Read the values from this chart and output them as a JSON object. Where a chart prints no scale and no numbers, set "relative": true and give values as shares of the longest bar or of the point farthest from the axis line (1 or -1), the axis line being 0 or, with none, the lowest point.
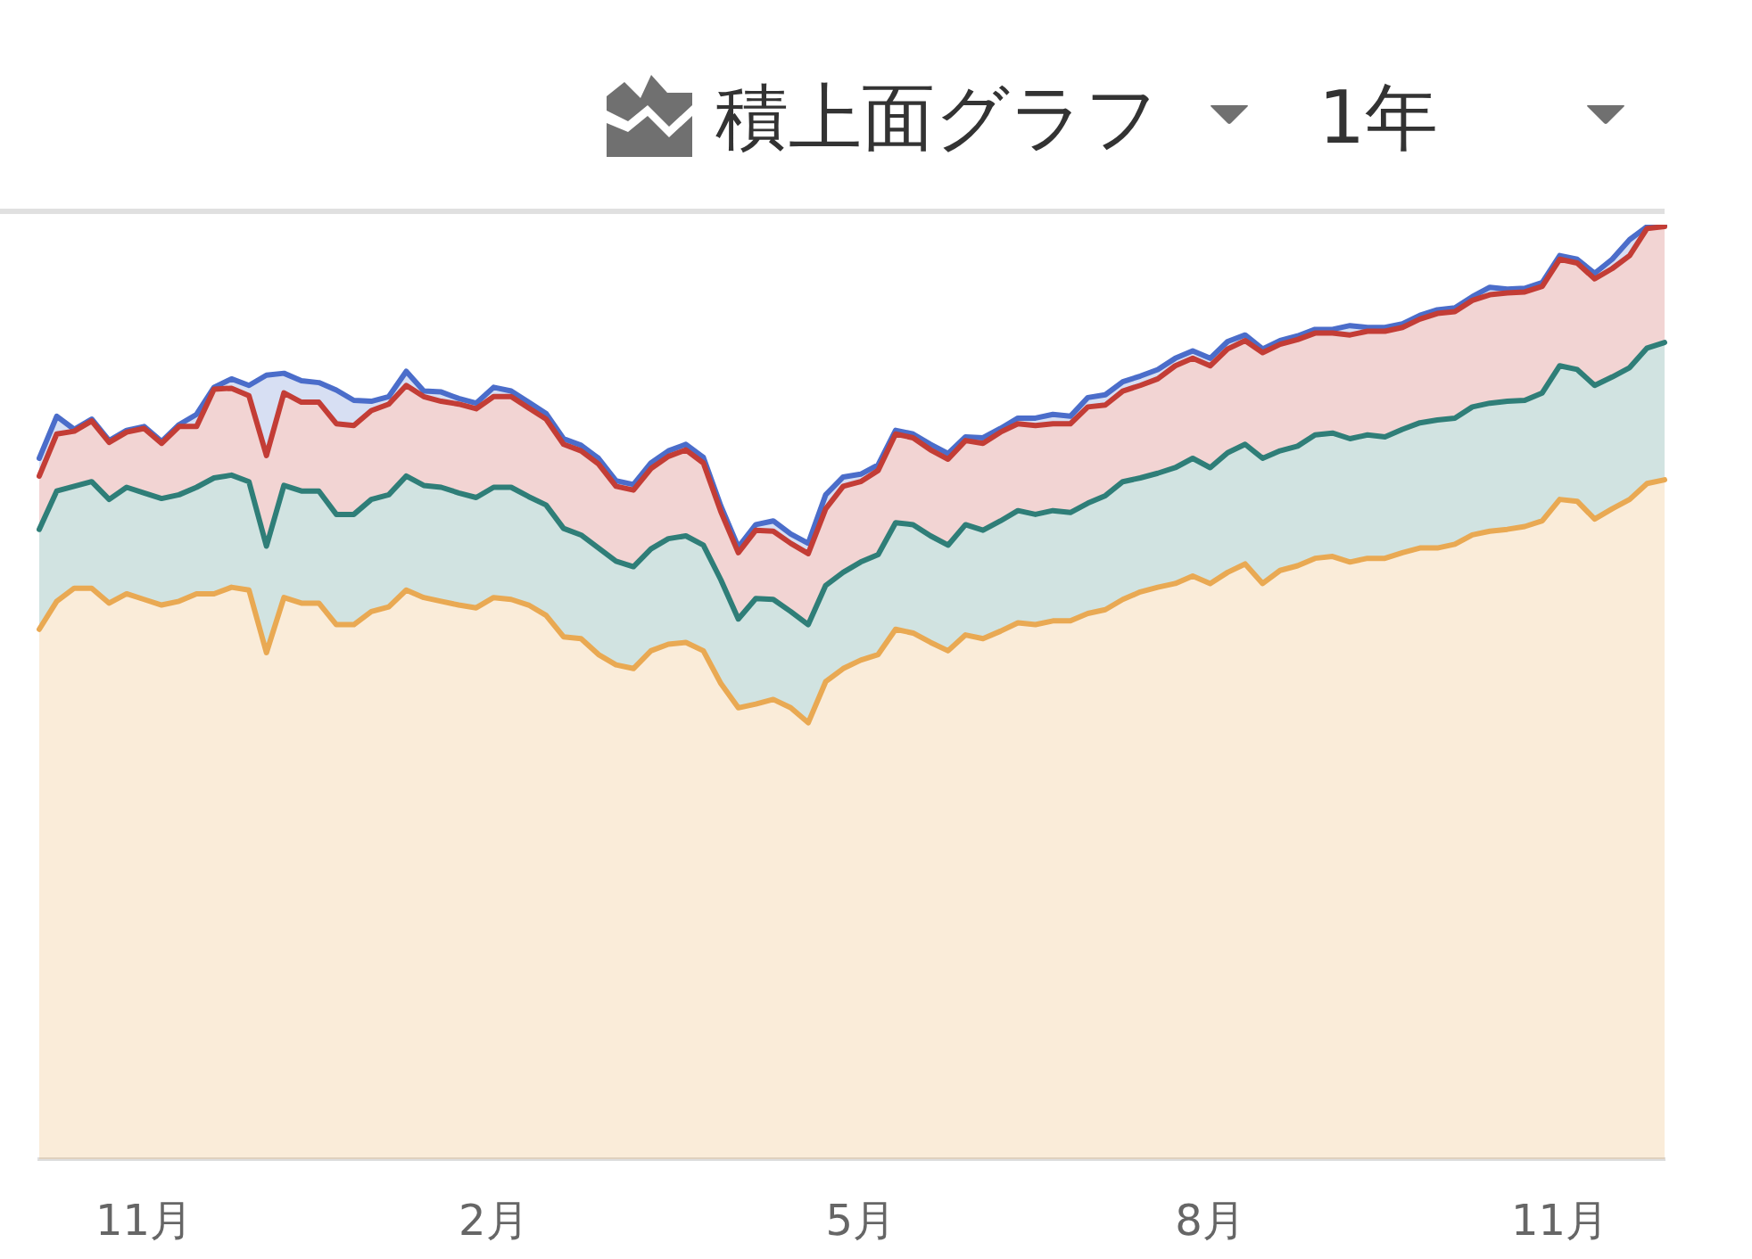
{
  "chart_data": {
    "type": "area",
    "stacked": true,
    "relative": true,
    "categories": [
      null,
      null,
      null,
      null,
      null,
      null,
      "11月",
      null,
      null,
      null,
      null,
      null,
      null,
      null,
      null,
      null,
      null,
      null,
      null,
      null,
      null,
      null,
      null,
      null,
      null,
      null,
      "2月",
      null,
      null,
      null,
      null,
      null,
      null,
      null,
      null,
      null,
      null,
      null,
      null,
      null,
      null,
      null,
      null,
      null,
      null,
      null,
      null,
      "5月",
      null,
      null,
      null,
      null,
      null,
      null,
      null,
      null,
      null,
      null,
      null,
      null,
      null,
      null,
      null,
      null,
      null,
      null,
      null,
      "8月",
      null,
      null,
      null,
      null,
      null,
      null,
      null,
      null,
      null,
      null,
      null,
      null,
      null,
      null,
      null,
      null,
      null,
      null,
      null,
      "11月",
      null,
      null,
      null,
      null,
      null,
      null
    ],
    "series": [
      {
        "color": "#e9a953",
        "values": [
          0.567,
          0.597,
          0.611,
          0.611,
          0.595,
          0.605,
          0.599,
          0.593,
          0.597,
          0.605,
          0.605,
          0.612,
          0.609,
          0.542,
          0.601,
          0.595,
          0.595,
          0.572,
          0.572,
          0.586,
          0.591,
          0.609,
          0.601,
          0.597,
          0.593,
          0.59,
          0.601,
          0.599,
          0.593,
          0.582,
          0.559,
          0.557,
          0.54,
          0.529,
          0.525,
          0.544,
          0.551,
          0.553,
          0.544,
          0.509,
          0.483,
          0.487,
          0.492,
          0.483,
          0.467,
          0.511,
          0.525,
          0.534,
          0.54,
          0.567,
          0.563,
          0.553,
          0.544,
          0.561,
          0.557,
          0.565,
          0.574,
          0.572,
          0.576,
          0.576,
          0.584,
          0.588,
          0.599,
          0.607,
          0.612,
          0.616,
          0.624,
          0.616,
          0.628,
          0.637,
          0.616,
          0.63,
          0.635,
          0.643,
          0.645,
          0.639,
          0.643,
          0.643,
          0.649,
          0.654,
          0.654,
          0.658,
          0.668,
          0.672,
          0.674,
          0.677,
          0.683,
          0.706,
          0.704,
          0.685,
          0.696,
          0.706,
          0.723,
          0.727
        ]
      },
      {
        "color": "#2f7e78",
        "values": [
          0.107,
          0.118,
          0.109,
          0.114,
          0.111,
          0.114,
          0.114,
          0.114,
          0.114,
          0.114,
          0.124,
          0.12,
          0.116,
          0.114,
          0.12,
          0.12,
          0.12,
          0.118,
          0.118,
          0.12,
          0.12,
          0.122,
          0.12,
          0.122,
          0.12,
          0.118,
          0.118,
          0.12,
          0.116,
          0.118,
          0.116,
          0.111,
          0.114,
          0.111,
          0.109,
          0.109,
          0.113,
          0.114,
          0.113,
          0.111,
          0.095,
          0.113,
          0.107,
          0.103,
          0.105,
          0.103,
          0.103,
          0.105,
          0.107,
          0.114,
          0.116,
          0.114,
          0.113,
          0.118,
          0.116,
          0.118,
          0.12,
          0.118,
          0.118,
          0.116,
          0.118,
          0.122,
          0.126,
          0.122,
          0.122,
          0.124,
          0.126,
          0.124,
          0.128,
          0.128,
          0.134,
          0.128,
          0.128,
          0.132,
          0.132,
          0.132,
          0.132,
          0.13,
          0.132,
          0.134,
          0.137,
          0.135,
          0.137,
          0.137,
          0.137,
          0.135,
          0.137,
          0.143,
          0.141,
          0.143,
          0.141,
          0.141,
          0.145,
          0.147
        ]
      },
      {
        "color": "#c33d36",
        "values": [
          0.057,
          0.061,
          0.059,
          0.065,
          0.061,
          0.059,
          0.069,
          0.059,
          0.073,
          0.065,
          0.095,
          0.093,
          0.092,
          0.097,
          0.099,
          0.095,
          0.095,
          0.097,
          0.095,
          0.095,
          0.097,
          0.097,
          0.095,
          0.092,
          0.095,
          0.095,
          0.097,
          0.097,
          0.095,
          0.092,
          0.09,
          0.09,
          0.09,
          0.08,
          0.082,
          0.086,
          0.088,
          0.092,
          0.088,
          0.073,
          0.071,
          0.073,
          0.073,
          0.073,
          0.076,
          0.082,
          0.092,
          0.086,
          0.09,
          0.095,
          0.093,
          0.092,
          0.092,
          0.09,
          0.093,
          0.095,
          0.093,
          0.095,
          0.093,
          0.095,
          0.103,
          0.097,
          0.097,
          0.099,
          0.101,
          0.109,
          0.107,
          0.109,
          0.111,
          0.111,
          0.113,
          0.114,
          0.114,
          0.109,
          0.107,
          0.111,
          0.111,
          0.113,
          0.109,
          0.111,
          0.114,
          0.114,
          0.114,
          0.116,
          0.116,
          0.116,
          0.114,
          0.114,
          0.114,
          0.114,
          0.116,
          0.12,
          0.128,
          0.124
        ]
      },
      {
        "color": "#4b6dca",
        "values": [
          0.019,
          0.019,
          0.002,
          0.002,
          0.002,
          0.002,
          0.002,
          0.002,
          0.002,
          0.013,
          0.002,
          0.01,
          0.011,
          0.086,
          0.021,
          0.023,
          0.021,
          0.036,
          0.027,
          0.01,
          0.008,
          0.015,
          0.006,
          0.01,
          0.006,
          0.006,
          0.01,
          0.006,
          0.006,
          0.006,
          0.006,
          0.006,
          0.006,
          0.006,
          0.006,
          0.006,
          0.006,
          0.006,
          0.006,
          0.006,
          0.006,
          0.006,
          0.011,
          0.01,
          0.011,
          0.015,
          0.01,
          0.008,
          0.006,
          0.004,
          0.004,
          0.006,
          0.006,
          0.004,
          0.006,
          0.004,
          0.006,
          0.008,
          0.01,
          0.008,
          0.01,
          0.011,
          0.01,
          0.01,
          0.01,
          0.008,
          0.008,
          0.008,
          0.008,
          0.006,
          0.004,
          0.004,
          0.004,
          0.004,
          0.004,
          0.01,
          0.004,
          0.004,
          0.004,
          0.004,
          0.004,
          0.004,
          0.004,
          0.008,
          0.004,
          0.004,
          0.004,
          0.004,
          0.004,
          0.006,
          0.01,
          0.017,
          0.002,
          0.002
        ]
      }
    ],
    "annotations": [
      "積上面グラフ",
      "1年"
    ]
  }
}
